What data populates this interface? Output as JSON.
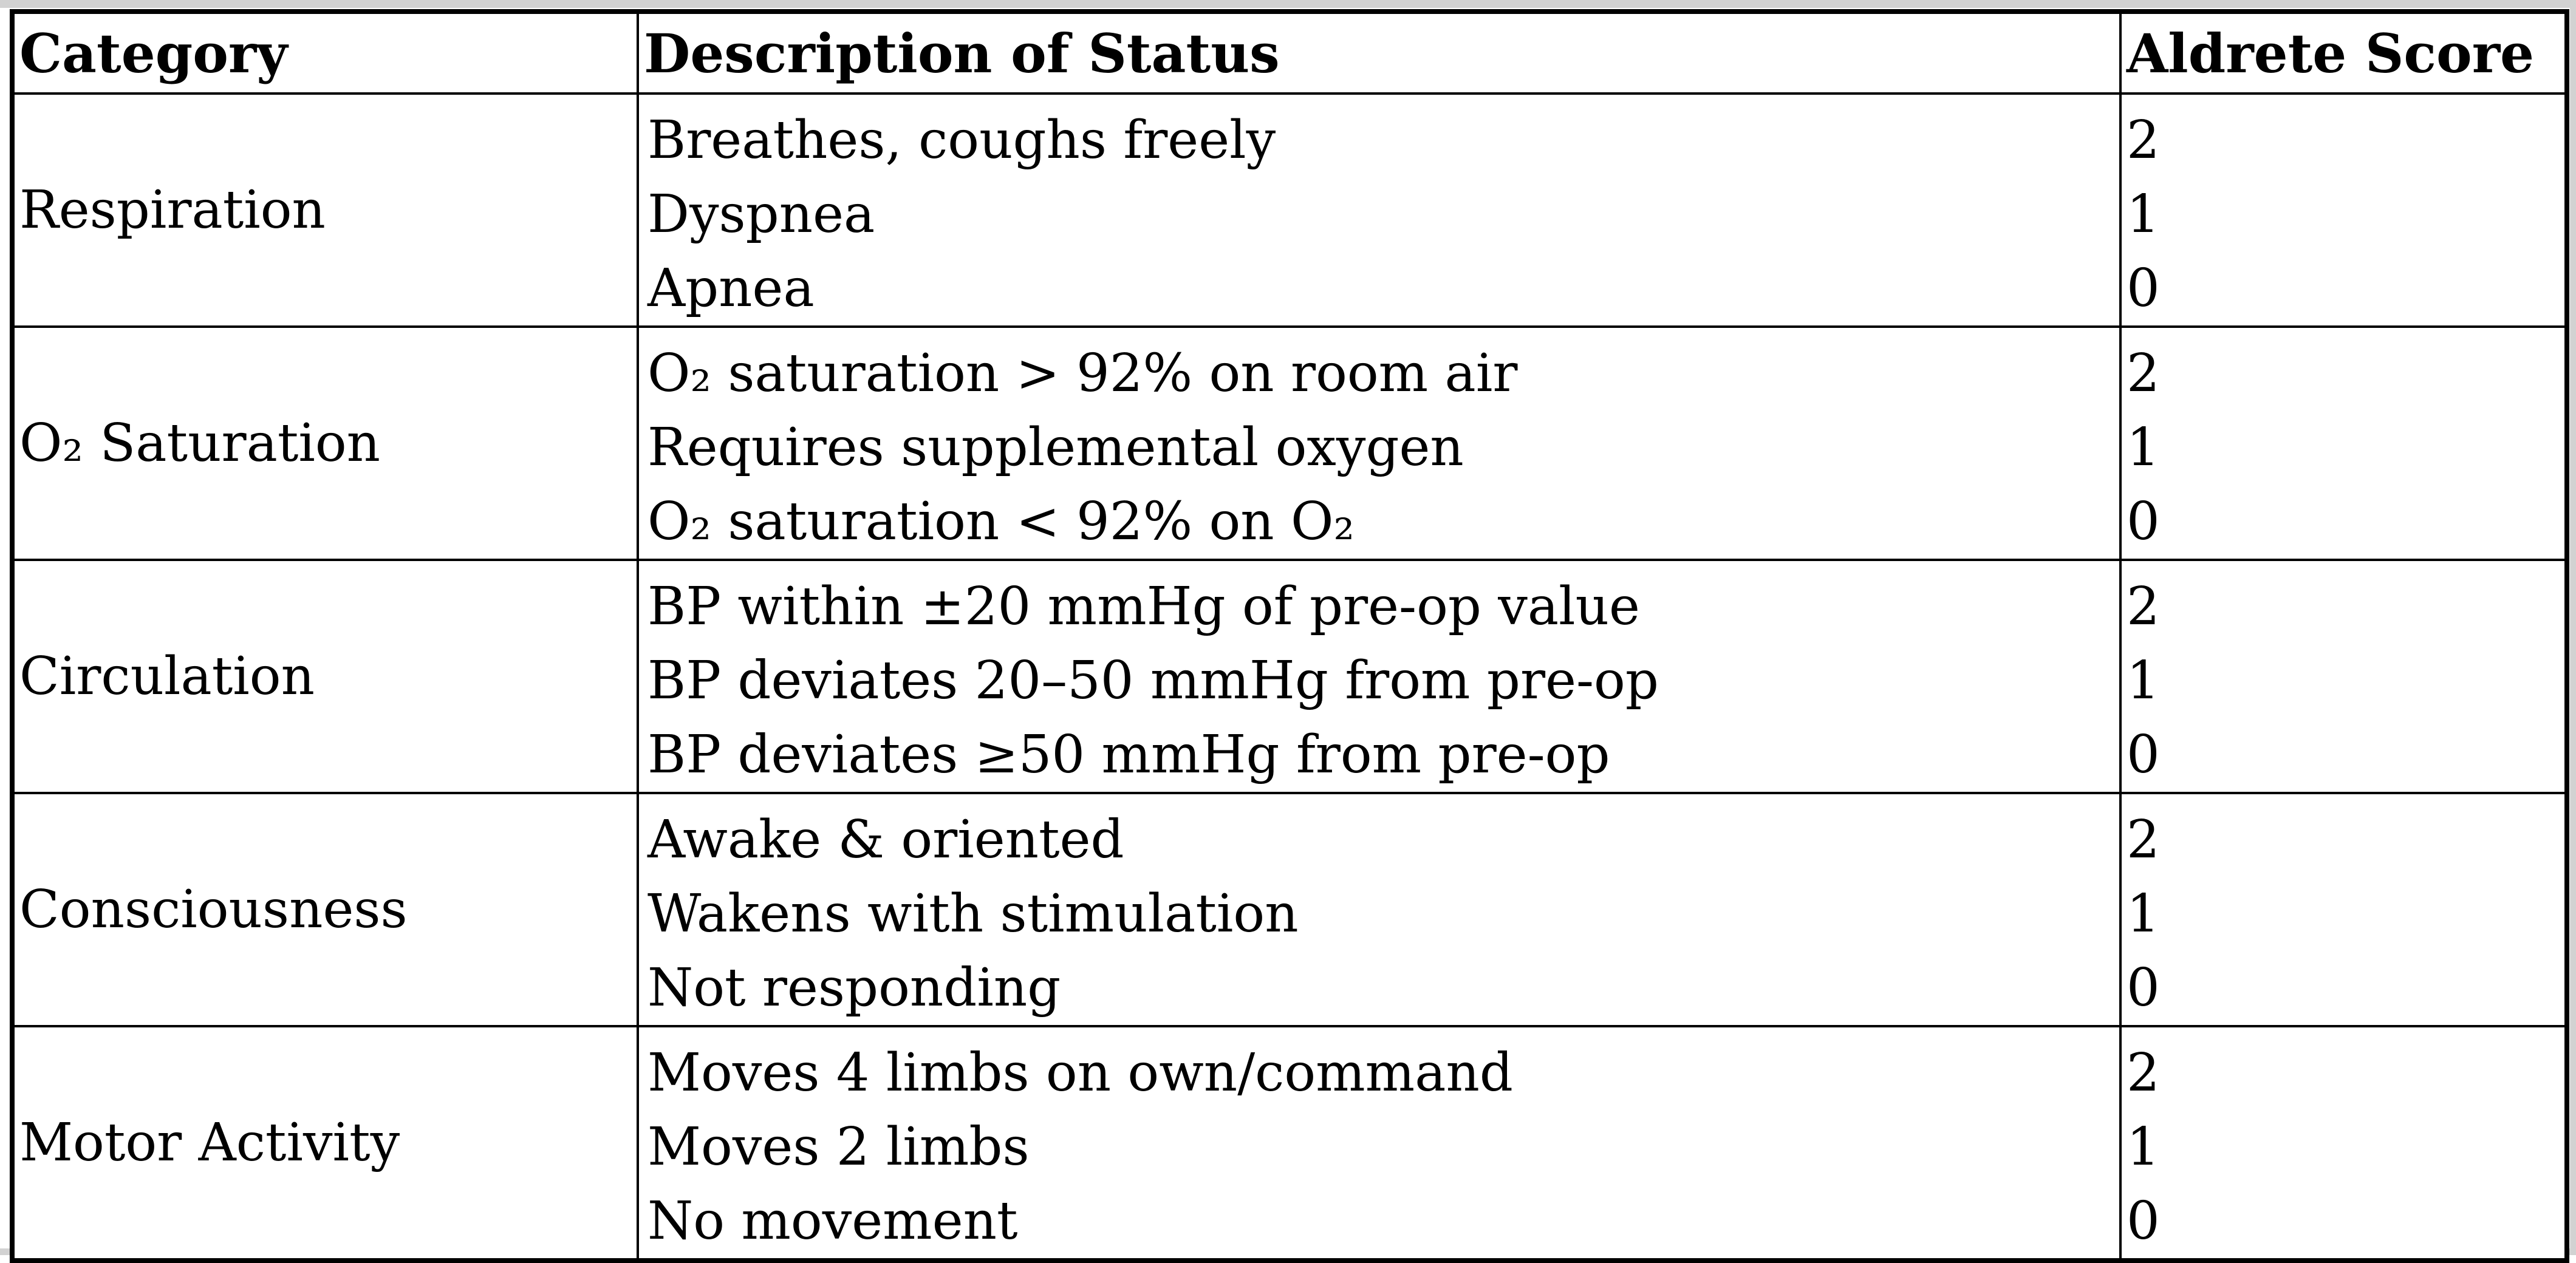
{
  "colors": {
    "background": "#ffffff",
    "border": "#000000",
    "text": "#000000",
    "scan_edge": "#d2d2d2"
  },
  "table": {
    "headers": [
      "Category",
      "Description of Status",
      "Aldrete Score"
    ],
    "rows": [
      {
        "category": "Respiration",
        "items": [
          {
            "description": "Breathes, coughs freely",
            "score": "2"
          },
          {
            "description": "Dyspnea",
            "score": "1"
          },
          {
            "description": "Apnea",
            "score": "0"
          }
        ]
      },
      {
        "category": "O₂ Saturation",
        "items": [
          {
            "description": "O₂ saturation > 92% on room air",
            "score": "2"
          },
          {
            "description": "Requires supplemental oxygen",
            "score": "1"
          },
          {
            "description": "O₂ saturation < 92% on O₂",
            "score": "0"
          }
        ]
      },
      {
        "category": "Circulation",
        "items": [
          {
            "description": "BP within ±20 mmHg of pre-op value",
            "score": "2"
          },
          {
            "description": "BP deviates 20–50 mmHg from pre-op",
            "score": "1"
          },
          {
            "description": "BP deviates ≥50 mmHg from pre-op",
            "score": "0"
          }
        ]
      },
      {
        "category": "Consciousness",
        "items": [
          {
            "description": "Awake & oriented",
            "score": "2"
          },
          {
            "description": "Wakens with stimulation",
            "score": "1"
          },
          {
            "description": "Not responding",
            "score": "0"
          }
        ]
      },
      {
        "category": "Motor Activity",
        "items": [
          {
            "description": "Moves 4 limbs on own/command",
            "score": "2"
          },
          {
            "description": "Moves 2 limbs",
            "score": "1"
          },
          {
            "description": "No movement",
            "score": "0"
          }
        ]
      }
    ]
  }
}
